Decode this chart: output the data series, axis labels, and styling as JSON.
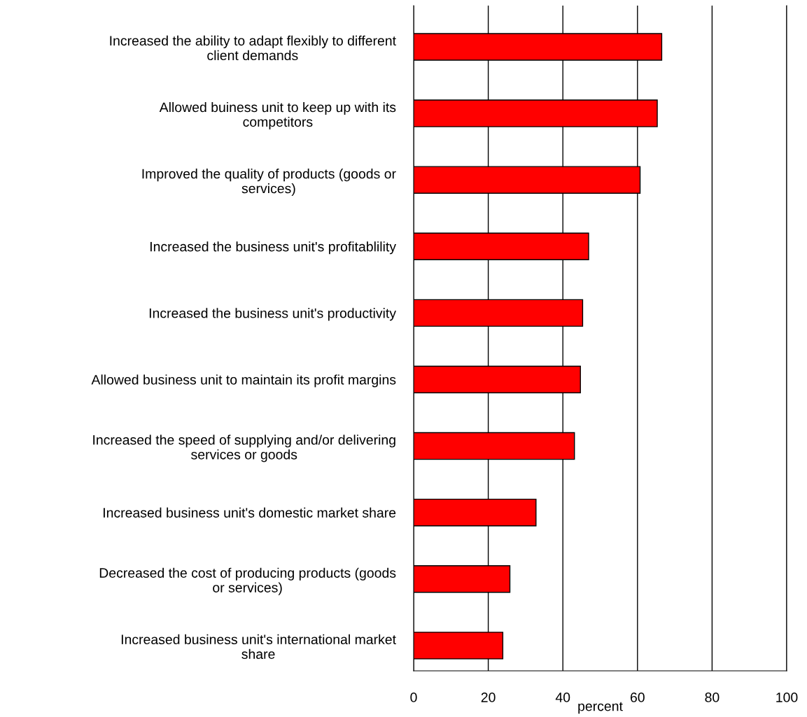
{
  "chart_data": {
    "type": "bar",
    "orientation": "horizontal",
    "xlabel": "percent",
    "categories": [
      "Increased the ability to adapt flexibly to different\nclient demands",
      "Allowed buiness unit to keep up with its\ncompetitors",
      "Improved the quality of products (goods or\nservices)",
      "Increased the business unit's profitablility",
      "Increased the business unit's productivity",
      "Allowed business unit to maintain its profit margins",
      "Increased the speed of supplying and/or delivering\nservices or goods",
      "Increased business unit's domestic market share",
      "Decreased the cost of producing products (goods\nor services)",
      "Increased business unit's international market\nshare"
    ],
    "values": [
      66.5,
      65.3,
      60.7,
      46.9,
      45.3,
      44.7,
      43.1,
      32.8,
      25.8,
      23.9
    ],
    "color": "#ff0000",
    "xlim": [
      0,
      100
    ],
    "xticks": [
      0,
      20,
      40,
      60,
      80,
      100
    ],
    "grid": "x",
    "legend": false
  }
}
